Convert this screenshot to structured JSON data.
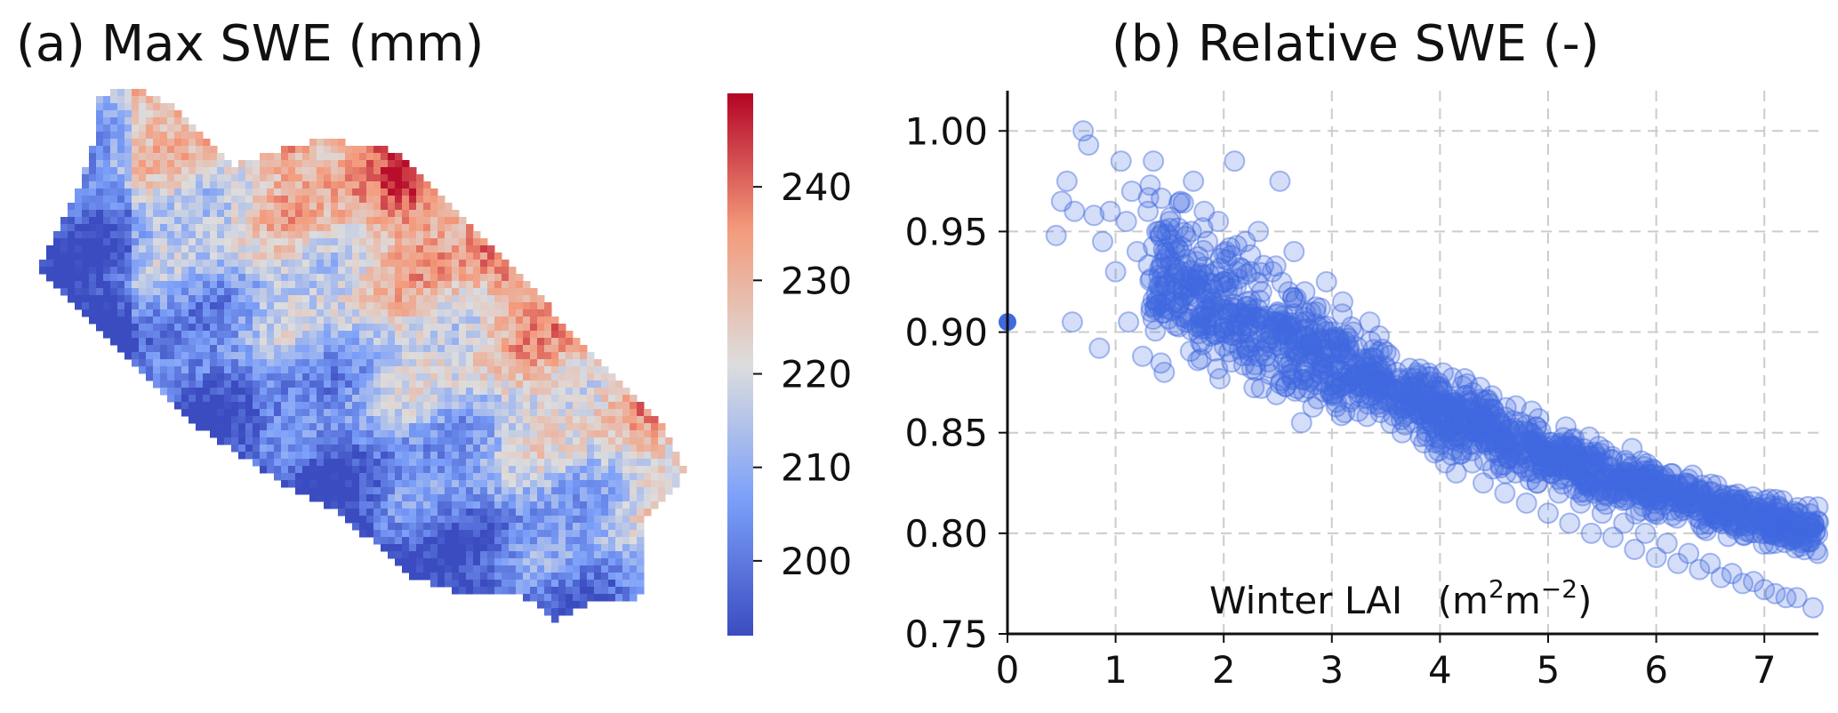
{
  "chart_data": [
    {
      "type": "heatmap",
      "title": "(a) Max SWE (mm)",
      "colormap": "coolwarm",
      "colorbar": {
        "range": [
          192,
          250
        ],
        "ticks": [
          "200",
          "210",
          "220",
          "230",
          "240"
        ],
        "tick_values": [
          200,
          210,
          220,
          230,
          240
        ],
        "low_color": "#3b4cc0",
        "mid_color": "#dddddd",
        "high_color": "#b40426"
      },
      "spatial_pattern": "higher SWE (red, ~230-245 mm) in the northern/upper half of the catchment, lower SWE (blue, ~195-210 mm) along the southwestern flank and southern lowlands"
    },
    {
      "type": "scatter",
      "title": "(b) Relative SWE (-)",
      "xlabel": "Winter LAI",
      "xlabel_unit": {
        "base1": "(m",
        "sup1": "2",
        "base2": "m",
        "sup2": "−2",
        "close": ")"
      },
      "ylabel": "",
      "xlim": [
        0,
        7.5
      ],
      "ylim": [
        0.75,
        1.02
      ],
      "x_ticks": [
        "0",
        "1",
        "2",
        "3",
        "4",
        "5",
        "6",
        "7"
      ],
      "x_tick_values": [
        0,
        1,
        2,
        3,
        4,
        5,
        6,
        7
      ],
      "y_ticks": [
        "0.75",
        "0.80",
        "0.85",
        "0.90",
        "0.95",
        "1.00"
      ],
      "y_tick_values": [
        0.75,
        0.8,
        0.85,
        0.9,
        0.95,
        1.0
      ],
      "grid": true,
      "grid_style": "dashed",
      "marker_color": "#4169e1",
      "marker_opacity": 0.22,
      "highlight_point": {
        "x": 0,
        "y": 0.905
      },
      "points": [
        [
          0.45,
          0.948
        ],
        [
          0.5,
          0.965
        ],
        [
          0.55,
          0.975
        ],
        [
          0.6,
          0.905
        ],
        [
          0.62,
          0.96
        ],
        [
          0.7,
          1.0
        ],
        [
          0.75,
          0.993
        ],
        [
          0.8,
          0.958
        ],
        [
          0.85,
          0.892
        ],
        [
          0.88,
          0.945
        ],
        [
          0.95,
          0.96
        ],
        [
          1.0,
          0.93
        ],
        [
          1.05,
          0.985
        ],
        [
          1.1,
          0.955
        ],
        [
          1.12,
          0.905
        ],
        [
          1.15,
          0.97
        ],
        [
          1.2,
          0.94
        ],
        [
          1.25,
          0.888
        ],
        [
          1.3,
          0.96
        ],
        [
          1.35,
          0.985
        ],
        [
          1.4,
          0.95
        ],
        [
          1.42,
          0.92
        ],
        [
          1.45,
          0.88
        ],
        [
          1.5,
          0.955
        ],
        [
          1.55,
          0.94
        ],
        [
          1.6,
          0.965
        ],
        [
          1.62,
          0.93
        ],
        [
          1.65,
          0.905
        ],
        [
          1.7,
          0.95
        ],
        [
          1.72,
          0.975
        ],
        [
          1.75,
          0.935
        ],
        [
          1.8,
          0.92
        ],
        [
          1.82,
          0.96
        ],
        [
          1.85,
          0.945
        ],
        [
          1.9,
          0.91
        ],
        [
          1.92,
          0.93
        ],
        [
          1.95,
          0.955
        ],
        [
          2.0,
          0.925
        ],
        [
          2.02,
          0.94
        ],
        [
          2.05,
          0.91
        ],
        [
          2.1,
          0.985
        ],
        [
          2.12,
          0.93
        ],
        [
          2.15,
          0.9
        ],
        [
          2.2,
          0.945
        ],
        [
          2.22,
          0.915
        ],
        [
          2.25,
          0.93
        ],
        [
          2.3,
          0.905
        ],
        [
          2.32,
          0.95
        ],
        [
          2.35,
          0.92
        ],
        [
          2.4,
          0.895
        ],
        [
          2.45,
          0.93
        ],
        [
          2.5,
          0.91
        ],
        [
          2.52,
          0.975
        ],
        [
          2.55,
          0.9
        ],
        [
          2.6,
          0.92
        ],
        [
          2.62,
          0.885
        ],
        [
          2.65,
          0.94
        ],
        [
          2.7,
          0.905
        ],
        [
          2.72,
          0.855
        ],
        [
          2.75,
          0.92
        ],
        [
          2.8,
          0.895
        ],
        [
          2.85,
          0.91
        ],
        [
          2.9,
          0.885
        ],
        [
          2.95,
          0.925
        ],
        [
          3.0,
          0.9
        ],
        [
          3.05,
          0.875
        ],
        [
          3.1,
          0.915
        ],
        [
          3.12,
          0.86
        ],
        [
          3.15,
          0.89
        ],
        [
          3.2,
          0.9
        ],
        [
          3.25,
          0.87
        ],
        [
          3.3,
          0.885
        ],
        [
          3.35,
          0.905
        ],
        [
          3.4,
          0.875
        ],
        [
          3.45,
          0.86
        ],
        [
          3.5,
          0.89
        ],
        [
          3.55,
          0.865
        ],
        [
          3.6,
          0.88
        ],
        [
          3.65,
          0.85
        ],
        [
          3.7,
          0.87
        ],
        [
          3.75,
          0.855
        ],
        [
          3.8,
          0.875
        ],
        [
          3.85,
          0.845
        ],
        [
          3.9,
          0.86
        ],
        [
          3.95,
          0.84
        ],
        [
          4.0,
          0.855
        ],
        [
          4.05,
          0.835
        ],
        [
          4.1,
          0.85
        ],
        [
          4.15,
          0.83
        ],
        [
          4.2,
          0.845
        ],
        [
          4.3,
          0.835
        ],
        [
          4.4,
          0.825
        ],
        [
          4.5,
          0.84
        ],
        [
          4.6,
          0.82
        ],
        [
          4.7,
          0.83
        ],
        [
          4.8,
          0.815
        ],
        [
          4.9,
          0.825
        ],
        [
          5.0,
          0.81
        ],
        [
          5.1,
          0.82
        ],
        [
          5.2,
          0.805
        ],
        [
          5.3,
          0.815
        ],
        [
          5.4,
          0.8
        ],
        [
          5.5,
          0.81
        ],
        [
          5.6,
          0.798
        ],
        [
          5.7,
          0.805
        ],
        [
          5.8,
          0.792
        ],
        [
          5.9,
          0.8
        ],
        [
          6.0,
          0.788
        ],
        [
          6.1,
          0.795
        ],
        [
          6.2,
          0.785
        ],
        [
          6.3,
          0.79
        ],
        [
          6.4,
          0.782
        ],
        [
          6.5,
          0.785
        ],
        [
          6.6,
          0.778
        ],
        [
          6.7,
          0.78
        ],
        [
          6.8,
          0.775
        ],
        [
          6.9,
          0.776
        ],
        [
          7.0,
          0.772
        ],
        [
          7.1,
          0.77
        ],
        [
          7.2,
          0.768
        ],
        [
          7.3,
          0.768
        ],
        [
          7.45,
          0.763
        ]
      ]
    }
  ]
}
